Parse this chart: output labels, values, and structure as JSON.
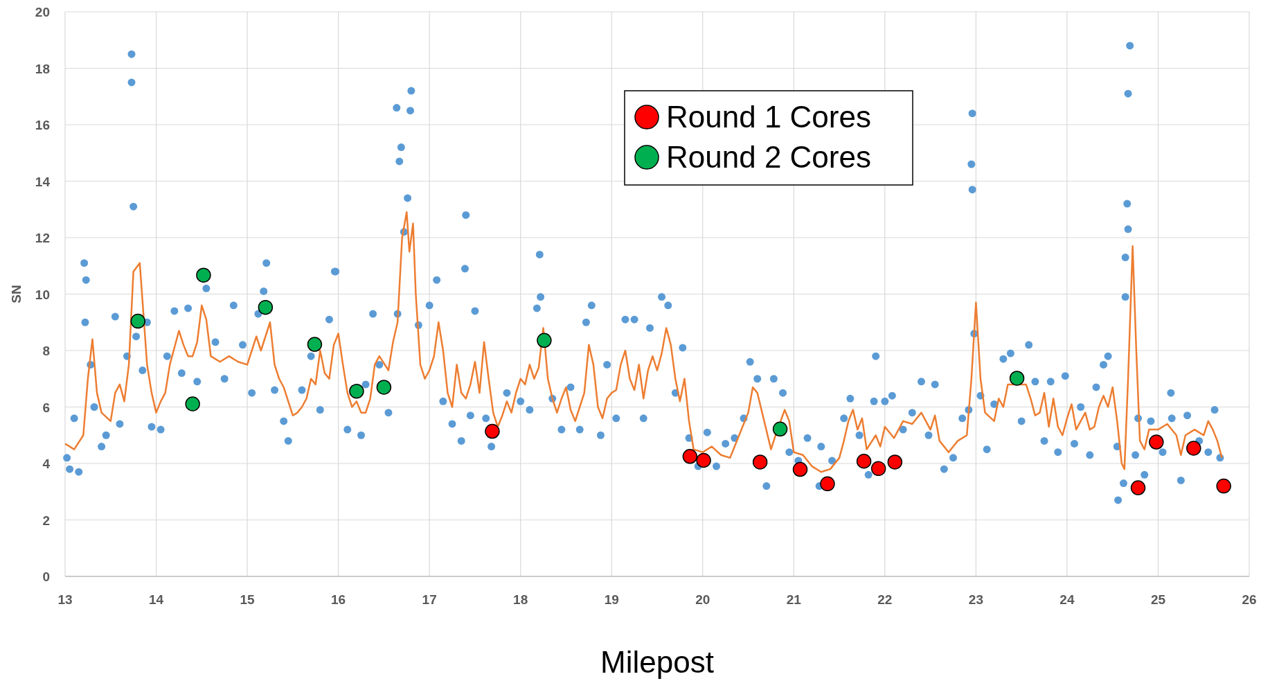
{
  "chart_data": {
    "type": "scatter",
    "xlabel": "Milepost",
    "ylabel": "SN",
    "xlim": [
      13,
      26
    ],
    "xticks": [
      13,
      14,
      15,
      16,
      17,
      18,
      19,
      20,
      21,
      22,
      23,
      24,
      25,
      26
    ],
    "ylim": [
      0,
      20
    ],
    "yticks": [
      0,
      2,
      4,
      6,
      8,
      10,
      12,
      14,
      16,
      18,
      20
    ],
    "grid": true,
    "legend": "top right",
    "marker": "circle",
    "series": [
      {
        "color": "#5b9bd5",
        "x": [
          13.73,
          13.73,
          13.75,
          13.21,
          13.23,
          15.21,
          15.96,
          16.64,
          16.69,
          16.67,
          16.8,
          16.79,
          16.76,
          17.4,
          17.39,
          18.21,
          21.9,
          22.96,
          22.95,
          22.96,
          24.69,
          24.67,
          24.66,
          24.67,
          24.64,
          24.64,
          24.78,
          24.56,
          21.28,
          25.14,
          13.02,
          13.05,
          13.1,
          13.15,
          13.22,
          13.28,
          13.32,
          13.4,
          13.45,
          13.55,
          13.6,
          13.68,
          13.78,
          13.85,
          13.9,
          13.95,
          14.05,
          14.12,
          14.2,
          14.28,
          14.35,
          14.45,
          14.55,
          14.65,
          14.75,
          14.85,
          14.95,
          15.05,
          15.12,
          15.18,
          15.3,
          15.4,
          15.45,
          15.6,
          15.7,
          15.8,
          15.9,
          15.97,
          16.1,
          16.25,
          16.3,
          16.38,
          16.45,
          16.55,
          16.65,
          16.72,
          16.88,
          17.0,
          17.08,
          17.15,
          17.25,
          17.35,
          17.45,
          17.5,
          17.62,
          17.68,
          17.85,
          18.0,
          18.1,
          18.18,
          18.22,
          18.35,
          18.45,
          18.55,
          18.65,
          18.72,
          18.78,
          18.88,
          18.95,
          19.05,
          19.15,
          19.25,
          19.35,
          19.42,
          19.55,
          19.62,
          19.7,
          19.78,
          19.85,
          19.95,
          20.05,
          20.15,
          20.25,
          20.35,
          20.45,
          20.52,
          20.6,
          20.7,
          20.78,
          20.88,
          20.95,
          21.05,
          21.15,
          21.3,
          21.42,
          21.55,
          21.62,
          21.72,
          21.82,
          21.88,
          22.0,
          22.08,
          22.2,
          22.3,
          22.4,
          22.48,
          22.55,
          22.65,
          22.75,
          22.85,
          22.92,
          22.98,
          23.05,
          23.12,
          23.2,
          23.3,
          23.38,
          23.5,
          23.58,
          23.65,
          23.75,
          23.82,
          23.9,
          23.98,
          24.08,
          24.15,
          24.25,
          24.32,
          24.4,
          24.45,
          24.55,
          24.62,
          24.75,
          24.85,
          24.92,
          25.05,
          25.15,
          25.25,
          25.32,
          25.45,
          25.55,
          25.62,
          25.68
        ],
        "values": [
          18.5,
          17.5,
          13.1,
          11.1,
          10.5,
          11.1,
          10.8,
          16.6,
          15.2,
          14.7,
          17.2,
          16.5,
          13.4,
          12.8,
          10.9,
          11.4,
          7.8,
          16.4,
          14.6,
          13.7,
          18.8,
          17.1,
          13.2,
          12.3,
          11.3,
          9.9,
          5.6,
          2.7,
          3.2,
          6.5,
          4.2,
          3.8,
          5.6,
          3.7,
          9.0,
          7.5,
          6.0,
          4.6,
          5.0,
          9.2,
          5.4,
          7.8,
          8.5,
          7.3,
          9.0,
          5.3,
          5.2,
          7.8,
          9.4,
          7.2,
          9.5,
          6.9,
          10.2,
          8.3,
          7.0,
          9.6,
          8.2,
          6.5,
          9.3,
          10.1,
          6.6,
          5.5,
          4.8,
          6.6,
          7.8,
          5.9,
          9.1,
          10.8,
          5.2,
          5.0,
          6.8,
          9.3,
          7.5,
          5.8,
          9.3,
          12.2,
          8.9,
          9.6,
          10.5,
          6.2,
          5.4,
          4.8,
          5.7,
          9.4,
          5.6,
          4.6,
          6.5,
          6.2,
          5.9,
          9.5,
          9.9,
          6.3,
          5.2,
          6.7,
          5.2,
          9.0,
          9.6,
          5.0,
          7.5,
          5.6,
          9.1,
          9.1,
          5.6,
          8.8,
          9.9,
          9.6,
          6.5,
          8.1,
          4.9,
          3.9,
          5.1,
          3.9,
          4.7,
          4.9,
          5.6,
          7.6,
          7.0,
          3.2,
          7.0,
          6.5,
          4.4,
          4.1,
          4.9,
          4.6,
          4.1,
          5.6,
          6.3,
          5.0,
          3.6,
          6.2,
          6.2,
          6.4,
          5.2,
          5.8,
          6.9,
          5.0,
          6.8,
          3.8,
          4.2,
          5.6,
          5.9,
          8.6,
          6.4,
          4.5,
          6.1,
          7.7,
          7.9,
          5.5,
          8.2,
          6.9,
          4.8,
          6.9,
          4.4,
          7.1,
          4.7,
          6.0,
          4.3,
          6.7,
          7.5,
          7.8,
          4.6,
          3.3,
          4.3,
          3.6,
          5.5,
          4.4,
          5.6,
          3.4,
          5.7,
          4.8,
          4.4,
          5.9,
          4.2
        ]
      },
      {
        "type": "line",
        "color": "#ed7d31",
        "marker": "none",
        "x": [
          13.0,
          13.1,
          13.2,
          13.25,
          13.3,
          13.35,
          13.4,
          13.5,
          13.55,
          13.6,
          13.65,
          13.7,
          13.75,
          13.82,
          13.9,
          13.95,
          14.0,
          14.05,
          14.1,
          14.15,
          14.25,
          14.3,
          14.35,
          14.4,
          14.45,
          14.5,
          14.55,
          14.6,
          14.7,
          14.8,
          14.9,
          15.0,
          15.05,
          15.1,
          15.15,
          15.25,
          15.3,
          15.35,
          15.4,
          15.45,
          15.5,
          15.55,
          15.6,
          15.65,
          15.7,
          15.75,
          15.8,
          15.85,
          15.9,
          15.95,
          16.0,
          16.05,
          16.1,
          16.15,
          16.2,
          16.25,
          16.3,
          16.35,
          16.4,
          16.45,
          16.55,
          16.6,
          16.65,
          16.7,
          16.75,
          16.78,
          16.82,
          16.85,
          16.9,
          16.95,
          17.0,
          17.05,
          17.1,
          17.15,
          17.2,
          17.25,
          17.3,
          17.35,
          17.4,
          17.45,
          17.5,
          17.55,
          17.6,
          17.65,
          17.7,
          17.75,
          17.8,
          17.85,
          17.9,
          17.95,
          18.0,
          18.05,
          18.1,
          18.15,
          18.2,
          18.25,
          18.3,
          18.35,
          18.4,
          18.45,
          18.5,
          18.55,
          18.6,
          18.65,
          18.7,
          18.75,
          18.8,
          18.85,
          18.9,
          18.95,
          19.0,
          19.05,
          19.1,
          19.15,
          19.2,
          19.25,
          19.3,
          19.35,
          19.4,
          19.45,
          19.5,
          19.55,
          19.6,
          19.65,
          19.7,
          19.75,
          19.8,
          19.85,
          19.9,
          20.0,
          20.1,
          20.2,
          20.3,
          20.4,
          20.5,
          20.55,
          20.6,
          20.75,
          20.8,
          20.9,
          20.95,
          21.0,
          21.1,
          21.2,
          21.3,
          21.4,
          21.5,
          21.55,
          21.6,
          21.65,
          21.7,
          21.75,
          21.8,
          21.9,
          21.95,
          22.0,
          22.1,
          22.2,
          22.3,
          22.4,
          22.5,
          22.55,
          22.6,
          22.7,
          22.8,
          22.9,
          22.95,
          23.0,
          23.05,
          23.1,
          23.2,
          23.25,
          23.3,
          23.35,
          23.55,
          23.6,
          23.65,
          23.7,
          23.75,
          23.8,
          23.85,
          23.9,
          23.95,
          24.0,
          24.05,
          24.1,
          24.15,
          24.2,
          24.25,
          24.3,
          24.35,
          24.4,
          24.45,
          24.5,
          24.55,
          24.6,
          24.63,
          24.67,
          24.72,
          24.76,
          24.8,
          24.85,
          24.9,
          25.0,
          25.1,
          25.2,
          25.25,
          25.3,
          25.4,
          25.5,
          25.55,
          25.6,
          25.65,
          25.7
        ],
        "values": [
          4.7,
          4.5,
          5.0,
          7.0,
          8.4,
          6.5,
          5.8,
          5.5,
          6.5,
          6.8,
          6.2,
          7.5,
          10.8,
          11.1,
          7.5,
          6.5,
          5.8,
          6.2,
          6.5,
          7.5,
          8.7,
          8.2,
          7.8,
          7.8,
          8.3,
          9.6,
          9.1,
          7.8,
          7.6,
          7.8,
          7.6,
          7.5,
          8.0,
          8.5,
          8.0,
          9.0,
          7.5,
          7.0,
          6.7,
          6.2,
          5.7,
          5.8,
          6.0,
          6.3,
          7.0,
          6.8,
          8.0,
          7.2,
          7.0,
          8.2,
          8.6,
          7.5,
          6.5,
          6.0,
          6.2,
          5.8,
          5.8,
          6.3,
          7.5,
          7.8,
          7.3,
          8.3,
          9.0,
          12.0,
          12.9,
          11.5,
          12.5,
          10.0,
          7.5,
          7.0,
          7.3,
          7.8,
          9.0,
          8.0,
          6.5,
          6.0,
          7.5,
          6.5,
          6.3,
          6.8,
          7.6,
          6.5,
          8.3,
          7.0,
          5.8,
          5.3,
          5.7,
          6.2,
          5.8,
          6.5,
          7.0,
          6.8,
          7.5,
          7.0,
          7.4,
          8.8,
          7.0,
          6.3,
          5.8,
          6.3,
          6.7,
          5.9,
          5.5,
          6.0,
          6.5,
          8.2,
          7.5,
          6.0,
          5.6,
          6.3,
          6.5,
          6.6,
          7.5,
          8.0,
          7.0,
          6.6,
          7.5,
          6.3,
          7.3,
          7.8,
          7.3,
          7.9,
          8.8,
          8.2,
          7.0,
          6.2,
          7.0,
          5.5,
          4.5,
          4.4,
          4.6,
          4.3,
          4.2,
          5.0,
          5.8,
          6.7,
          6.5,
          4.5,
          5.0,
          5.9,
          5.5,
          4.4,
          4.3,
          3.9,
          3.7,
          3.8,
          4.2,
          4.8,
          5.5,
          5.9,
          5.2,
          5.6,
          4.5,
          5.0,
          4.6,
          5.3,
          4.9,
          5.5,
          5.4,
          5.8,
          5.2,
          5.7,
          4.8,
          4.4,
          4.8,
          5.0,
          7.0,
          9.7,
          7.0,
          5.8,
          5.5,
          6.3,
          6.0,
          6.8,
          6.8,
          6.3,
          5.7,
          5.8,
          6.5,
          5.3,
          6.3,
          5.3,
          5.0,
          5.6,
          6.1,
          5.2,
          5.5,
          5.8,
          5.2,
          5.3,
          6.0,
          6.4,
          6.0,
          6.7,
          5.5,
          4.0,
          3.8,
          7.0,
          11.7,
          8.0,
          4.8,
          4.5,
          5.2,
          5.2,
          5.4,
          5.0,
          4.3,
          5.0,
          5.2,
          5.0,
          5.5,
          5.2,
          4.8,
          4.2
        ]
      },
      {
        "name": "Round 1 Cores",
        "color": "#ff0000",
        "x": [
          17.69,
          19.86,
          20.01,
          20.63,
          21.07,
          21.37,
          21.77,
          21.93,
          22.11,
          24.78,
          24.98,
          25.39,
          25.72
        ],
        "values": [
          5.14,
          4.25,
          4.11,
          4.05,
          3.79,
          3.28,
          4.08,
          3.82,
          4.05,
          3.14,
          4.76,
          4.54,
          3.2
        ]
      },
      {
        "name": "Round 2 Cores",
        "color": "#00b050",
        "x": [
          13.8,
          14.4,
          14.52,
          15.2,
          15.74,
          16.2,
          16.5,
          18.26,
          20.85,
          23.45
        ],
        "values": [
          9.04,
          6.11,
          10.67,
          9.53,
          8.22,
          6.56,
          6.7,
          8.36,
          5.22,
          7.02
        ]
      }
    ]
  }
}
